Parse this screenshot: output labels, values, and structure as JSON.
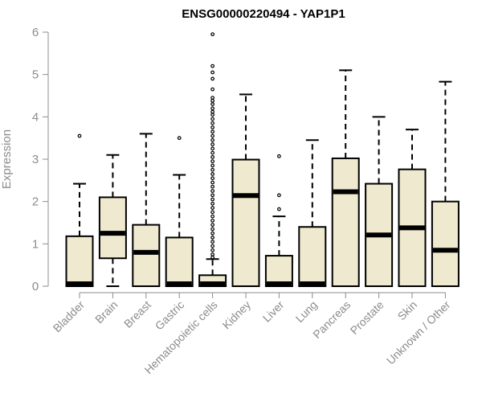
{
  "chart_data": {
    "type": "boxplot",
    "title": "ENSG00000220494 - YAP1P1",
    "xlabel": "",
    "ylabel": "Expression",
    "ylim": [
      0,
      6
    ],
    "yticks": [
      0,
      1,
      2,
      3,
      4,
      5,
      6
    ],
    "grid": false,
    "legend": "none",
    "colors": {
      "box_fill": "#efe9cf",
      "stroke": "#000000",
      "axis": "#8c8c8c",
      "label": "#8c8c8c"
    },
    "categories": [
      "Bladder",
      "Brain",
      "Breast",
      "Gastric",
      "Hematopoietic cells",
      "Kidney",
      "Liver",
      "Lung",
      "Pancreas",
      "Prostate",
      "Skin",
      "Unknown / Other"
    ],
    "boxes": [
      {
        "category": "Bladder",
        "whisker_low": 0,
        "q1": 0,
        "median": 0,
        "q3": 1.18,
        "whisker_high": 2.42,
        "outliers": [
          3.55
        ]
      },
      {
        "category": "Brain",
        "whisker_low": 0,
        "q1": 0.66,
        "median": 1.25,
        "q3": 2.1,
        "whisker_high": 3.1,
        "outliers": []
      },
      {
        "category": "Breast",
        "whisker_low": 0,
        "q1": 0,
        "median": 0.8,
        "q3": 1.45,
        "whisker_high": 3.6,
        "outliers": []
      },
      {
        "category": "Gastric",
        "whisker_low": 0,
        "q1": 0,
        "median": 0,
        "q3": 1.15,
        "whisker_high": 2.63,
        "outliers": [
          3.5
        ]
      },
      {
        "category": "Hematopoietic cells",
        "whisker_low": 0,
        "q1": 0,
        "median": 0.03,
        "q3": 0.26,
        "whisker_high": 0.64,
        "outliers": [
          5.95,
          5.2,
          5.05,
          4.9,
          4.65,
          4.45,
          4.38,
          4.3,
          4.2,
          4.12,
          4.05,
          3.95,
          3.85,
          3.75,
          3.65,
          3.55,
          3.45,
          3.35,
          3.25,
          3.15,
          3.05,
          2.95,
          2.85,
          2.75,
          2.65,
          2.55,
          2.45,
          2.35,
          2.25,
          2.15,
          2.05,
          1.95,
          1.85,
          1.75,
          1.65,
          1.55,
          1.45,
          1.35,
          1.25,
          1.15,
          1.05,
          0.95,
          0.85,
          0.75,
          0.68
        ]
      },
      {
        "category": "Kidney",
        "whisker_low": 0,
        "q1": 0,
        "median": 2.14,
        "q3": 2.99,
        "whisker_high": 4.53,
        "outliers": []
      },
      {
        "category": "Liver",
        "whisker_low": 0,
        "q1": 0,
        "median": 0,
        "q3": 0.72,
        "whisker_high": 1.65,
        "outliers": [
          1.82,
          2.15,
          3.07
        ]
      },
      {
        "category": "Lung",
        "whisker_low": 0,
        "q1": 0,
        "median": 0,
        "q3": 1.4,
        "whisker_high": 3.45,
        "outliers": []
      },
      {
        "category": "Pancreas",
        "whisker_low": 0,
        "q1": 0,
        "median": 2.23,
        "q3": 3.02,
        "whisker_high": 5.1,
        "outliers": []
      },
      {
        "category": "Prostate",
        "whisker_low": 0,
        "q1": 0,
        "median": 1.21,
        "q3": 2.42,
        "whisker_high": 4.0,
        "outliers": []
      },
      {
        "category": "Skin",
        "whisker_low": 0,
        "q1": 0,
        "median": 1.38,
        "q3": 2.76,
        "whisker_high": 3.7,
        "outliers": []
      },
      {
        "category": "Unknown / Other",
        "whisker_low": 0,
        "q1": 0,
        "median": 0.85,
        "q3": 2.0,
        "whisker_high": 4.83,
        "outliers": []
      }
    ]
  }
}
